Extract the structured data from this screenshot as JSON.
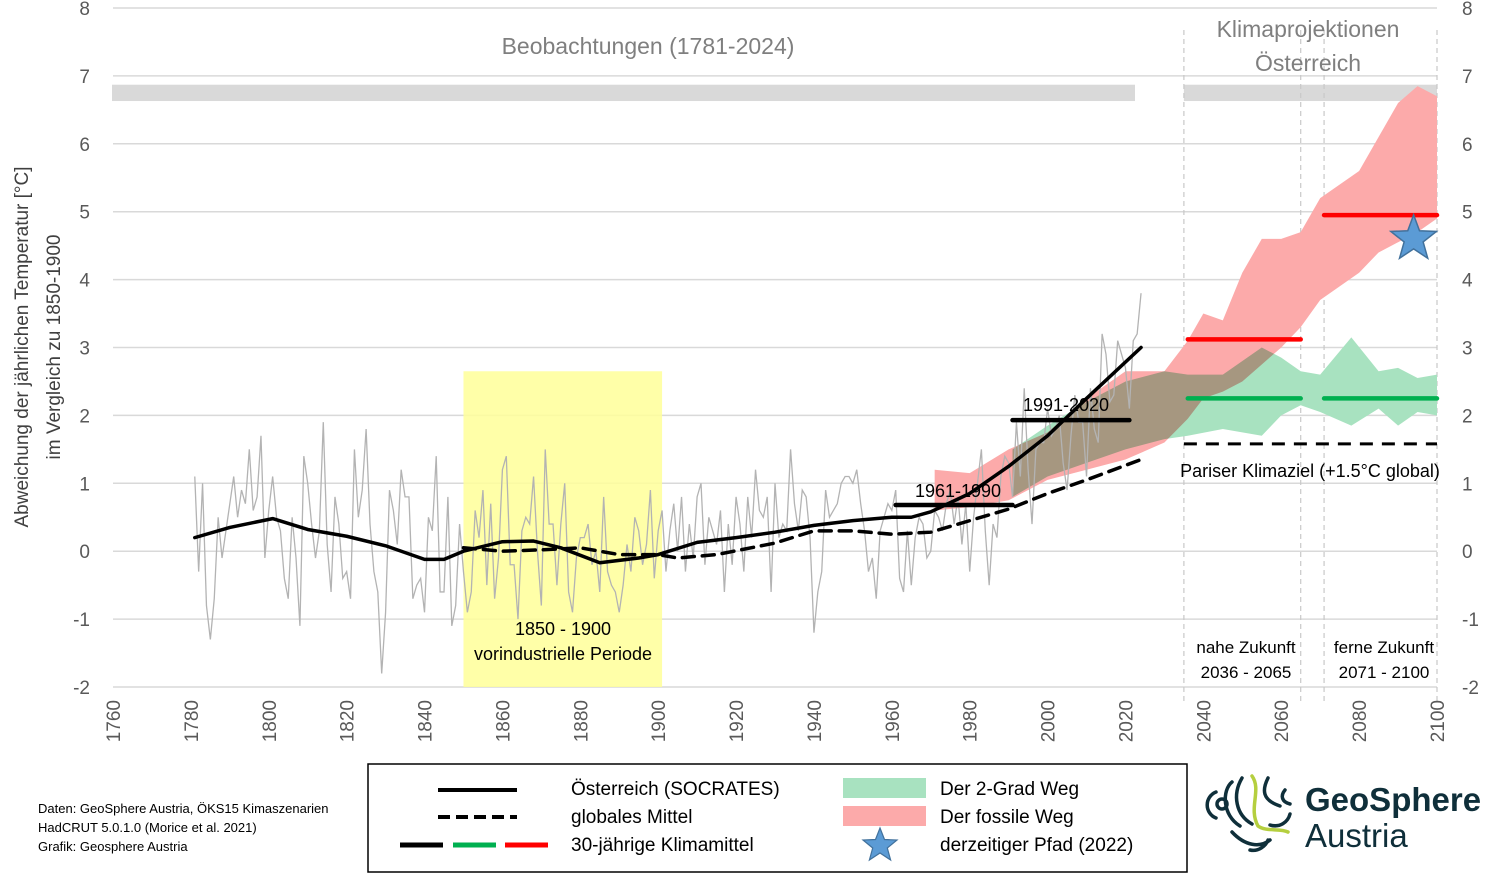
{
  "chart_data": {
    "type": "line",
    "ylabel": [
      "Abweichung der jährlichen Temperatur [°C]",
      "im Vergleich zu 1850-1900"
    ],
    "xlabel": "",
    "xlim": [
      1760,
      2100
    ],
    "ylim": [
      -2,
      8
    ],
    "x_ticks": [
      "1760",
      "1780",
      "1800",
      "1820",
      "1840",
      "1860",
      "1880",
      "1900",
      "1920",
      "1940",
      "1960",
      "1980",
      "2000",
      "2020",
      "2040",
      "2060",
      "2080",
      "2100"
    ],
    "y_ticks": [
      "-2",
      "-1",
      "0",
      "1",
      "2",
      "3",
      "4",
      "5",
      "6",
      "7",
      "8"
    ],
    "grid": true,
    "section_titles": {
      "observations": "Beobachtungen (1781-2024)",
      "projections": [
        "Klimaprojektionen",
        "Österreich"
      ]
    },
    "annual_austria": {
      "start_year": 1781,
      "color": "#b3b3b3",
      "values": [
        1.1,
        -0.3,
        1.0,
        -0.8,
        -1.3,
        -0.7,
        0.5,
        -0.1,
        0.3,
        0.7,
        1.1,
        0.5,
        0.9,
        0.7,
        1.5,
        0.6,
        0.8,
        1.7,
        -0.1,
        0.6,
        1.1,
        0.5,
        0.3,
        -0.4,
        -0.7,
        0.5,
        -0.1,
        -1.1,
        1.4,
        1.0,
        0.4,
        -0.1,
        0.3,
        1.9,
        0.1,
        -0.6,
        0.8,
        0.4,
        -0.4,
        -0.3,
        -0.7,
        1.5,
        0.5,
        0.9,
        1.8,
        0.4,
        -0.3,
        -0.6,
        -1.8,
        -0.9,
        0.9,
        0.6,
        0.1,
        1.2,
        0.8,
        0.8,
        -0.7,
        -0.5,
        -0.4,
        -0.9,
        0.5,
        0.3,
        1.4,
        -0.6,
        -0.6,
        0.8,
        -1.1,
        -0.8,
        0.4,
        -0.3,
        -0.9,
        -0.6,
        0.6,
        0.2,
        0.9,
        -0.5,
        0.7,
        -0.7,
        -0.1,
        1.2,
        1.4,
        -0.2,
        -0.2,
        -1.0,
        0.3,
        0.5,
        0.4,
        1.1,
        0.0,
        -0.8,
        1.5,
        0.4,
        0.4,
        -0.5,
        0.4,
        1.0,
        -0.6,
        -0.9,
        -0.1,
        0.2,
        0.2,
        0.4,
        -0.2,
        0.0,
        -0.6,
        0.8,
        -0.3,
        -0.5,
        -0.6,
        -0.9,
        -0.5,
        0.1,
        -0.3,
        0.5,
        0.3,
        -0.2,
        0.1,
        0.9,
        -0.4,
        0.3,
        0.6,
        -0.3,
        0.3,
        0.7,
        0.0,
        0.8,
        -0.3,
        0.4,
        -0.1,
        0.8,
        1.0,
        -0.2,
        0.5,
        0.3,
        0.1,
        0.6,
        -0.6,
        0.4,
        -0.2,
        0.8,
        0.4,
        -0.3,
        0.8,
        0.2,
        1.2,
        0.6,
        0.5,
        0.8,
        -0.6,
        1.0,
        0.2,
        0.4,
        0.3,
        1.5,
        0.7,
        0.3,
        0.9,
        0.8,
        0.2,
        -1.2,
        -0.6,
        -0.3,
        0.9,
        0.5,
        0.6,
        0.7,
        1.0,
        1.1,
        1.1,
        1.0,
        1.2,
        0.7,
        0.3,
        -0.3,
        -0.1,
        -0.7,
        0.3,
        0.5,
        0.7,
        0.6,
        0.9,
        -0.4,
        -0.6,
        0.3,
        -0.5,
        0.2,
        0.5,
        0.4,
        -0.1,
        0.0,
        0.6,
        0.5,
        0.3,
        0.7,
        0.9,
        0.4,
        0.8,
        0.1,
        0.7,
        -0.3,
        0.5,
        1.0,
        1.5,
        0.3,
        -0.5,
        0.4,
        0.2,
        1.1,
        1.4,
        1.3,
        0.8,
        1.9,
        1.1,
        2.4,
        1.2,
        0.4,
        1.5,
        1.6,
        1.6,
        2.1,
        1.7,
        1.8,
        2.0,
        1.3,
        0.9,
        1.7,
        2.3,
        1.9,
        1.9,
        1.1,
        2.4,
        1.8,
        1.6,
        3.2,
        2.9,
        2.2,
        2.3,
        3.1,
        2.9,
        2.7,
        2.1,
        3.1,
        3.2,
        3.8
      ]
    },
    "series": [
      {
        "name": "Österreich (SOCRATES)",
        "style": "solid",
        "color": "#000000",
        "points": [
          [
            1781,
            0.2
          ],
          [
            1790,
            0.35
          ],
          [
            1801,
            0.48
          ],
          [
            1810,
            0.32
          ],
          [
            1820,
            0.22
          ],
          [
            1830,
            0.08
          ],
          [
            1840,
            -0.12
          ],
          [
            1845,
            -0.12
          ],
          [
            1850,
            0.0
          ],
          [
            1860,
            0.14
          ],
          [
            1868,
            0.15
          ],
          [
            1875,
            0.05
          ],
          [
            1885,
            -0.17
          ],
          [
            1895,
            -0.1
          ],
          [
            1900,
            -0.05
          ],
          [
            1910,
            0.13
          ],
          [
            1920,
            0.2
          ],
          [
            1930,
            0.28
          ],
          [
            1940,
            0.38
          ],
          [
            1950,
            0.45
          ],
          [
            1960,
            0.5
          ],
          [
            1965,
            0.5
          ],
          [
            1970,
            0.58
          ],
          [
            1980,
            0.85
          ],
          [
            1990,
            1.25
          ],
          [
            2000,
            1.7
          ],
          [
            2010,
            2.25
          ],
          [
            2024,
            3.0
          ]
        ]
      },
      {
        "name": "globales Mittel",
        "style": "dashed",
        "color": "#000000",
        "points": [
          [
            1850,
            0.05
          ],
          [
            1860,
            0.0
          ],
          [
            1870,
            0.02
          ],
          [
            1880,
            0.05
          ],
          [
            1890,
            -0.05
          ],
          [
            1900,
            -0.05
          ],
          [
            1905,
            -0.1
          ],
          [
            1915,
            -0.05
          ],
          [
            1930,
            0.12
          ],
          [
            1940,
            0.3
          ],
          [
            1950,
            0.3
          ],
          [
            1960,
            0.25
          ],
          [
            1970,
            0.28
          ],
          [
            1980,
            0.45
          ],
          [
            1990,
            0.62
          ],
          [
            2000,
            0.85
          ],
          [
            2010,
            1.05
          ],
          [
            2024,
            1.35
          ]
        ]
      }
    ],
    "bands": [
      {
        "name": "Der 2-Grad Weg",
        "color": "#a8e2c0",
        "points": [
          [
            1991,
            1.5,
            0.8
          ],
          [
            2000,
            1.85,
            1.1
          ],
          [
            2010,
            2.2,
            1.3
          ],
          [
            2020,
            2.5,
            1.5
          ],
          [
            2030,
            2.65,
            1.65
          ],
          [
            2036,
            2.6,
            1.7
          ],
          [
            2045,
            2.6,
            1.8
          ],
          [
            2055,
            3.0,
            1.7
          ],
          [
            2060,
            2.85,
            2.0
          ],
          [
            2065,
            2.65,
            2.15
          ],
          [
            2070,
            2.6,
            2.05
          ],
          [
            2078,
            3.15,
            1.85
          ],
          [
            2085,
            2.65,
            2.1
          ],
          [
            2090,
            2.7,
            1.85
          ],
          [
            2095,
            2.55,
            2.05
          ],
          [
            2100,
            2.6,
            2.0
          ]
        ]
      },
      {
        "name": "Der fossile Weg",
        "color": "#fcaaaa",
        "points": [
          [
            1971,
            1.2,
            0.6
          ],
          [
            1980,
            1.15,
            0.65
          ],
          [
            1990,
            1.5,
            0.75
          ],
          [
            2000,
            1.75,
            1.05
          ],
          [
            2010,
            2.25,
            1.2
          ],
          [
            2020,
            2.65,
            1.35
          ],
          [
            2030,
            2.65,
            1.6
          ],
          [
            2036,
            3.1,
            1.95
          ],
          [
            2040,
            3.5,
            2.25
          ],
          [
            2045,
            3.4,
            2.35
          ],
          [
            2050,
            4.1,
            2.5
          ],
          [
            2055,
            4.6,
            2.75
          ],
          [
            2060,
            4.6,
            3.0
          ],
          [
            2065,
            4.7,
            3.3
          ],
          [
            2070,
            5.2,
            3.7
          ],
          [
            2080,
            5.6,
            4.1
          ],
          [
            2085,
            6.1,
            4.4
          ],
          [
            2090,
            6.6,
            4.55
          ],
          [
            2095,
            6.85,
            4.7
          ],
          [
            2100,
            6.7,
            4.9
          ]
        ]
      }
    ],
    "climate_means": [
      {
        "label": "1961-1990",
        "from": 1961,
        "to": 1991,
        "value": 0.68,
        "color": "#000000"
      },
      {
        "label": "1991-2020",
        "from": 1991,
        "to": 2021,
        "value": 1.93,
        "color": "#000000"
      },
      {
        "label": "",
        "from": 2036,
        "to": 2065,
        "value": 2.25,
        "color": "#00b050"
      },
      {
        "label": "",
        "from": 2071,
        "to": 2100,
        "value": 2.25,
        "color": "#00b050"
      },
      {
        "label": "",
        "from": 2036,
        "to": 2065,
        "value": 3.12,
        "color": "#ff0000"
      },
      {
        "label": "",
        "from": 2071,
        "to": 2100,
        "value": 4.95,
        "color": "#ff0000"
      }
    ],
    "paris_target": {
      "label": "Pariser Klimaziel (+1.5°C global)",
      "from": 2035,
      "to": 2100,
      "value": 1.58
    },
    "current_path": {
      "label": "derzeitiger Pfad (2022)",
      "year": 2094,
      "value": 4.6,
      "color": "#5b9bd5"
    },
    "preindustrial": {
      "label": [
        "1850 - 1900",
        "vorindustrielle Periode"
      ],
      "from": 1850,
      "to": 1901,
      "top": 2.65,
      "color": "#ffff99"
    },
    "periods": [
      {
        "label": [
          "nahe Zukunft",
          "2036 - 2065"
        ],
        "from": 2035,
        "to": 2065
      },
      {
        "label": [
          "ferne Zukunft",
          "2071 - 2100"
        ],
        "from": 2071,
        "to": 2100
      }
    ],
    "legend": {
      "placement": "bottom",
      "entries": [
        "Österreich (SOCRATES)",
        "globales Mittel",
        "30-jährige Klimamittel",
        "Der 2-Grad Weg",
        "Der fossile Weg",
        "derzeitiger Pfad (2022)"
      ]
    }
  },
  "credits": [
    "Daten: GeoSphere Austria, ÖKS15 Kimaszenarien",
    "HadCRUT 5.0.1.0 (Morice et al. 2021)",
    "Grafik: Geosphere Austria"
  ],
  "logo": {
    "line1": "GeoSphere",
    "line2": "Austria"
  }
}
